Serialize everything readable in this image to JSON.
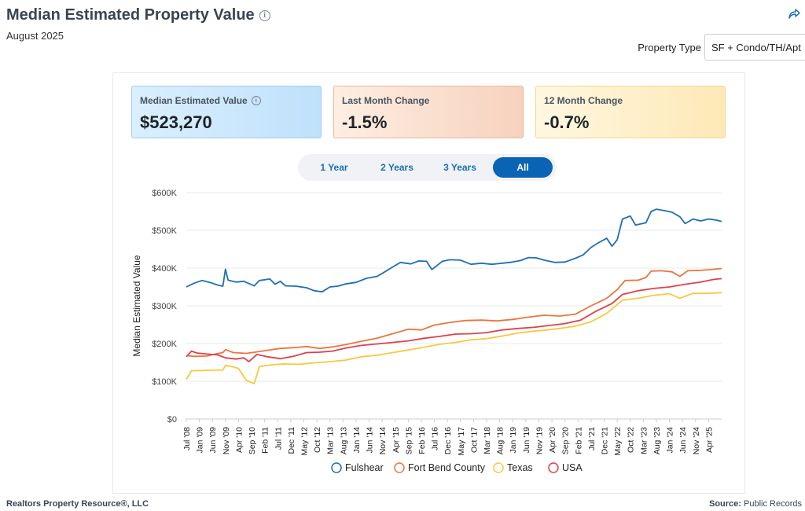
{
  "header": {
    "title": "Median Estimated Property Value",
    "subtitle": "August 2025",
    "property_type_label": "Property Type",
    "property_type_value": "SF + Condo/TH/Apt"
  },
  "kpis": [
    {
      "label": "Median Estimated Value",
      "value": "$523,270"
    },
    {
      "label": "Last Month Change",
      "value": "-1.5%"
    },
    {
      "label": "12 Month Change",
      "value": "-0.7%"
    }
  ],
  "range_buttons": [
    "1 Year",
    "2 Years",
    "3 Years",
    "All"
  ],
  "range_active": "All",
  "footer": {
    "left": "Realtors Property Resource®, LLC",
    "source_label": "Source:",
    "source_value": "Public Records"
  },
  "chart_data": {
    "type": "line",
    "ylabel": "Median Estimated Value",
    "xlabel": "",
    "ylim": [
      0,
      600000
    ],
    "y_ticks": [
      0,
      100000,
      200000,
      300000,
      400000,
      500000,
      600000
    ],
    "y_tick_labels": [
      "$0",
      "$100K",
      "$200K",
      "$300K",
      "$400K",
      "$500K",
      "$600K"
    ],
    "x_range": [
      "2008-07",
      "2025-08"
    ],
    "x_tick_labels": [
      "Jul '08",
      "Jan '09",
      "Jun '09",
      "Nov '09",
      "Apr '10",
      "Sep '10",
      "Feb '11",
      "Jul '11",
      "Dec '11",
      "May '12",
      "Oct '12",
      "Mar '13",
      "Aug '13",
      "Jan '14",
      "Jun '14",
      "Nov '14",
      "Apr '15",
      "Sep '15",
      "Feb '16",
      "Jul '16",
      "Dec '16",
      "May '17",
      "Oct '17",
      "Mar '18",
      "Aug '18",
      "Jan '19",
      "Jun '19",
      "Nov '19",
      "Apr '20",
      "Sep '20",
      "Feb '21",
      "Jul '21",
      "Dec '21",
      "May '22",
      "Oct '22",
      "Mar '23",
      "Aug '23",
      "Jan '24",
      "Jun '24",
      "Nov '24",
      "Apr '25"
    ],
    "grid": "horizontal",
    "legend_position": "bottom",
    "series": [
      {
        "name": "Fulshear",
        "color": "#1f6fb5",
        "points": [
          [
            "2008-07",
            350000
          ],
          [
            "2008-10",
            360000
          ],
          [
            "2009-01",
            367000
          ],
          [
            "2009-04",
            362000
          ],
          [
            "2009-07",
            355000
          ],
          [
            "2009-09",
            352000
          ],
          [
            "2009-10",
            397000
          ],
          [
            "2009-11",
            368000
          ],
          [
            "2010-02",
            363000
          ],
          [
            "2010-05",
            365000
          ],
          [
            "2010-09",
            353000
          ],
          [
            "2010-11",
            367000
          ],
          [
            "2011-03",
            371000
          ],
          [
            "2011-05",
            357000
          ],
          [
            "2011-07",
            365000
          ],
          [
            "2011-09",
            353000
          ],
          [
            "2012-01",
            352000
          ],
          [
            "2012-05",
            348000
          ],
          [
            "2012-08",
            340000
          ],
          [
            "2012-11",
            337000
          ],
          [
            "2013-02",
            350000
          ],
          [
            "2013-05",
            352000
          ],
          [
            "2013-08",
            358000
          ],
          [
            "2013-12",
            362000
          ],
          [
            "2014-04",
            373000
          ],
          [
            "2014-08",
            378000
          ],
          [
            "2014-11",
            390000
          ],
          [
            "2015-02",
            403000
          ],
          [
            "2015-05",
            415000
          ],
          [
            "2015-09",
            411000
          ],
          [
            "2015-12",
            419000
          ],
          [
            "2016-03",
            418000
          ],
          [
            "2016-05",
            396000
          ],
          [
            "2016-09",
            418000
          ],
          [
            "2016-12",
            422000
          ],
          [
            "2017-04",
            421000
          ],
          [
            "2017-08",
            410000
          ],
          [
            "2017-12",
            413000
          ],
          [
            "2018-04",
            410000
          ],
          [
            "2018-08",
            413000
          ],
          [
            "2018-12",
            416000
          ],
          [
            "2019-03",
            420000
          ],
          [
            "2019-06",
            428000
          ],
          [
            "2019-09",
            427000
          ],
          [
            "2019-12",
            421000
          ],
          [
            "2020-04",
            415000
          ],
          [
            "2020-08",
            416000
          ],
          [
            "2020-12",
            426000
          ],
          [
            "2021-03",
            435000
          ],
          [
            "2021-06",
            455000
          ],
          [
            "2021-09",
            468000
          ],
          [
            "2021-12",
            479000
          ],
          [
            "2022-02",
            458000
          ],
          [
            "2022-04",
            475000
          ],
          [
            "2022-06",
            530000
          ],
          [
            "2022-09",
            538000
          ],
          [
            "2022-11",
            514000
          ],
          [
            "2023-03",
            520000
          ],
          [
            "2023-05",
            550000
          ],
          [
            "2023-07",
            556000
          ],
          [
            "2023-11",
            551000
          ],
          [
            "2024-01",
            548000
          ],
          [
            "2024-04",
            536000
          ],
          [
            "2024-06",
            518000
          ],
          [
            "2024-09",
            530000
          ],
          [
            "2024-12",
            525000
          ],
          [
            "2025-03",
            530000
          ],
          [
            "2025-06",
            527000
          ],
          [
            "2025-08",
            523270
          ]
        ]
      },
      {
        "name": "Fort Bend County",
        "color": "#e8763f",
        "points": [
          [
            "2008-07",
            168000
          ],
          [
            "2008-10",
            166000
          ],
          [
            "2009-03",
            167000
          ],
          [
            "2009-06",
            172000
          ],
          [
            "2009-09",
            176000
          ],
          [
            "2009-10",
            184000
          ],
          [
            "2010-01",
            176000
          ],
          [
            "2010-06",
            174000
          ],
          [
            "2010-10",
            178000
          ],
          [
            "2011-02",
            182000
          ],
          [
            "2011-07",
            187000
          ],
          [
            "2011-12",
            189000
          ],
          [
            "2012-05",
            192000
          ],
          [
            "2012-10",
            187000
          ],
          [
            "2013-03",
            191000
          ],
          [
            "2013-08",
            197000
          ],
          [
            "2014-02",
            206000
          ],
          [
            "2014-08",
            214000
          ],
          [
            "2015-02",
            226000
          ],
          [
            "2015-08",
            238000
          ],
          [
            "2016-01",
            236000
          ],
          [
            "2016-06",
            249000
          ],
          [
            "2016-12",
            256000
          ],
          [
            "2017-06",
            261000
          ],
          [
            "2017-12",
            262000
          ],
          [
            "2018-06",
            260000
          ],
          [
            "2018-12",
            264000
          ],
          [
            "2019-06",
            270000
          ],
          [
            "2019-12",
            275000
          ],
          [
            "2020-06",
            273000
          ],
          [
            "2020-12",
            278000
          ],
          [
            "2021-06",
            300000
          ],
          [
            "2021-12",
            320000
          ],
          [
            "2022-04",
            343000
          ],
          [
            "2022-07",
            367000
          ],
          [
            "2022-12",
            368000
          ],
          [
            "2023-03",
            375000
          ],
          [
            "2023-05",
            392000
          ],
          [
            "2023-09",
            393000
          ],
          [
            "2024-01",
            390000
          ],
          [
            "2024-04",
            378000
          ],
          [
            "2024-07",
            393000
          ],
          [
            "2024-12",
            394000
          ],
          [
            "2025-04",
            396000
          ],
          [
            "2025-08",
            399000
          ]
        ]
      },
      {
        "name": "Texas",
        "color": "#f7c842",
        "points": [
          [
            "2008-07",
            105000
          ],
          [
            "2008-09",
            128000
          ],
          [
            "2009-03",
            129000
          ],
          [
            "2009-09",
            130000
          ],
          [
            "2009-10",
            142000
          ],
          [
            "2010-01",
            138000
          ],
          [
            "2010-03",
            134000
          ],
          [
            "2010-06",
            102000
          ],
          [
            "2010-09",
            94000
          ],
          [
            "2010-11",
            139000
          ],
          [
            "2011-03",
            143000
          ],
          [
            "2011-08",
            146000
          ],
          [
            "2012-02",
            145000
          ],
          [
            "2012-08",
            149000
          ],
          [
            "2013-02",
            152000
          ],
          [
            "2013-08",
            156000
          ],
          [
            "2014-02",
            165000
          ],
          [
            "2014-08",
            169000
          ],
          [
            "2015-02",
            176000
          ],
          [
            "2015-08",
            183000
          ],
          [
            "2016-02",
            190000
          ],
          [
            "2016-08",
            198000
          ],
          [
            "2017-02",
            203000
          ],
          [
            "2017-08",
            210000
          ],
          [
            "2018-02",
            213000
          ],
          [
            "2018-08",
            220000
          ],
          [
            "2019-02",
            228000
          ],
          [
            "2019-08",
            233000
          ],
          [
            "2019-12",
            235000
          ],
          [
            "2020-06",
            240000
          ],
          [
            "2020-12",
            246000
          ],
          [
            "2021-06",
            258000
          ],
          [
            "2021-12",
            280000
          ],
          [
            "2022-06",
            315000
          ],
          [
            "2022-12",
            320000
          ],
          [
            "2023-06",
            328000
          ],
          [
            "2023-12",
            332000
          ],
          [
            "2024-04",
            320000
          ],
          [
            "2024-09",
            333000
          ],
          [
            "2025-03",
            333000
          ],
          [
            "2025-08",
            335000
          ]
        ]
      },
      {
        "name": "USA",
        "color": "#e0404a",
        "points": [
          [
            "2008-07",
            165000
          ],
          [
            "2008-09",
            180000
          ],
          [
            "2008-11",
            175000
          ],
          [
            "2009-03",
            172000
          ],
          [
            "2009-07",
            170000
          ],
          [
            "2009-10",
            162000
          ],
          [
            "2010-02",
            159000
          ],
          [
            "2010-05",
            162000
          ],
          [
            "2010-07",
            152000
          ],
          [
            "2010-10",
            171000
          ],
          [
            "2011-02",
            165000
          ],
          [
            "2011-07",
            160000
          ],
          [
            "2011-12",
            166000
          ],
          [
            "2012-05",
            176000
          ],
          [
            "2012-10",
            177000
          ],
          [
            "2013-03",
            180000
          ],
          [
            "2013-08",
            188000
          ],
          [
            "2014-02",
            195000
          ],
          [
            "2014-08",
            199000
          ],
          [
            "2015-02",
            203000
          ],
          [
            "2015-08",
            207000
          ],
          [
            "2016-02",
            214000
          ],
          [
            "2016-08",
            219000
          ],
          [
            "2017-02",
            225000
          ],
          [
            "2017-08",
            226000
          ],
          [
            "2018-02",
            229000
          ],
          [
            "2018-08",
            236000
          ],
          [
            "2019-02",
            240000
          ],
          [
            "2019-08",
            243000
          ],
          [
            "2020-02",
            248000
          ],
          [
            "2020-08",
            253000
          ],
          [
            "2021-02",
            262000
          ],
          [
            "2021-08",
            286000
          ],
          [
            "2022-02",
            306000
          ],
          [
            "2022-06",
            330000
          ],
          [
            "2022-12",
            340000
          ],
          [
            "2023-06",
            346000
          ],
          [
            "2023-12",
            350000
          ],
          [
            "2024-06",
            357000
          ],
          [
            "2024-12",
            363000
          ],
          [
            "2025-05",
            370000
          ],
          [
            "2025-08",
            372000
          ]
        ]
      }
    ]
  }
}
